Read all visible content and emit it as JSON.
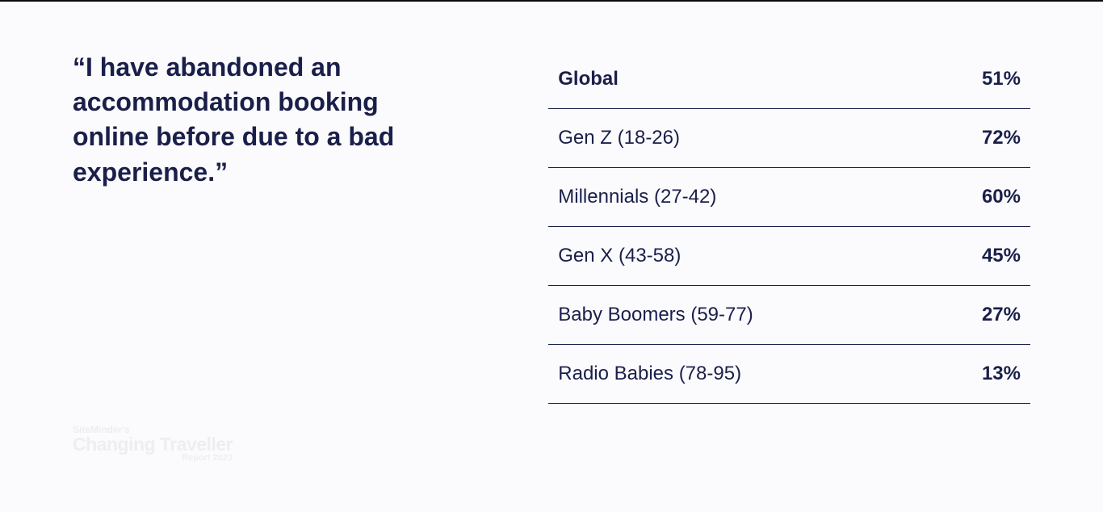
{
  "quote": "“I have abandoned an accommodation booking online before due to a bad experience.”",
  "watermark": {
    "line1": "SiteMinder's",
    "line2": "Changing Traveller",
    "line3": "Report 2023"
  },
  "table": {
    "type": "table",
    "header": {
      "label": "Global",
      "value": "51%"
    },
    "rows": [
      {
        "label": "Gen Z (18-26)",
        "value": "72%"
      },
      {
        "label": "Millennials (27-42)",
        "value": "60%"
      },
      {
        "label": "Gen X (43-58)",
        "value": "45%"
      },
      {
        "label": "Baby Boomers (59-77)",
        "value": "27%"
      },
      {
        "label": "Radio Babies (78-95)",
        "value": "13%"
      }
    ],
    "text_color": "#1a1f4a",
    "divider_color": "#1a1f4a",
    "label_fontsize": 24,
    "value_fontsize": 24,
    "value_fontweight": 700,
    "background_color": "#fbfbfd"
  }
}
